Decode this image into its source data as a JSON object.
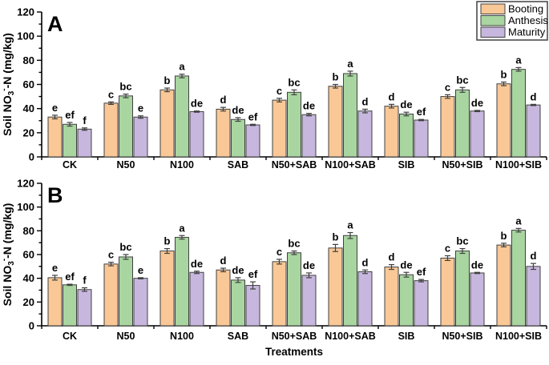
{
  "figure": {
    "xlabel": "Treatments",
    "ylabel_parts": {
      "pre": "Soil NO",
      "sub": "3",
      "sup": "-",
      "post": "-N (mg/kg)"
    },
    "colors": {
      "booting": "#F9C896",
      "anthesis": "#A8D5A0",
      "maturity": "#C7B7DE",
      "bar_border": "#404040",
      "axis": "#000000",
      "legend_border": "#404040"
    }
  },
  "legend": {
    "position": "top-right",
    "items": [
      {
        "label": "Booting",
        "color": "#F9C896"
      },
      {
        "label": "Anthesis",
        "color": "#A8D5A0"
      },
      {
        "label": "Maturity",
        "color": "#C7B7DE"
      }
    ]
  },
  "chart_data": [
    {
      "type": "bar",
      "panel_label": "A",
      "title": "",
      "xlabel": "",
      "ylabel": "Soil NO3--N (mg/kg)",
      "ylim": [
        0,
        120
      ],
      "ytick_major": 20,
      "ytick_minor": 10,
      "grid": false,
      "categories": [
        "CK",
        "N50",
        "N100",
        "SAB",
        "N50+SAB",
        "N100+SAB",
        "SIB",
        "N50+SIB",
        "N100+SIB"
      ],
      "series": [
        {
          "name": "Booting",
          "color": "#F9C896",
          "values": [
            33,
            44.5,
            55.5,
            39.5,
            47,
            58.5,
            42,
            50,
            60.5
          ],
          "errors": [
            1.5,
            1,
            1.5,
            1.5,
            1.5,
            1.5,
            1.5,
            1.5,
            1.5
          ],
          "letters": [
            "e",
            "c",
            "b",
            "d",
            "c",
            "b",
            "d",
            "c",
            "b"
          ]
        },
        {
          "name": "Anthesis",
          "color": "#A8D5A0",
          "values": [
            27,
            50.5,
            67,
            31,
            53.5,
            69,
            35.5,
            55.5,
            72.5
          ],
          "errors": [
            1.5,
            1.5,
            1.5,
            1.5,
            2,
            2,
            1.5,
            2,
            1.5
          ],
          "letters": [
            "ef",
            "bc",
            "a",
            "de",
            "bc",
            "a",
            "de",
            "bc",
            "a"
          ]
        },
        {
          "name": "Maturity",
          "color": "#C7B7DE",
          "values": [
            23,
            33,
            37.5,
            26.5,
            35,
            38,
            30.5,
            38,
            43
          ],
          "errors": [
            1,
            1,
            0.5,
            0.5,
            1,
            1.5,
            0.5,
            0.5,
            0.5
          ],
          "letters": [
            "f",
            "e",
            "de",
            "ef",
            "de",
            "d",
            "ef",
            "de",
            "d"
          ]
        }
      ]
    },
    {
      "type": "bar",
      "panel_label": "B",
      "title": "",
      "xlabel": "Treatments",
      "ylabel": "Soil NO3--N (mg/kg)",
      "ylim": [
        0,
        120
      ],
      "ytick_major": 20,
      "ytick_minor": 10,
      "grid": false,
      "categories": [
        "CK",
        "N50",
        "N100",
        "SAB",
        "N50+SAB",
        "N100+SAB",
        "SIB",
        "N50+SIB",
        "N100+SIB"
      ],
      "series": [
        {
          "name": "Booting",
          "color": "#F9C896",
          "values": [
            40.5,
            52,
            63,
            47,
            54,
            65.5,
            49.5,
            57,
            68
          ],
          "errors": [
            2,
            1.5,
            2,
            1.5,
            2,
            3,
            2,
            2,
            1.5
          ],
          "letters": [
            "e",
            "c",
            "b",
            "d",
            "c",
            "b",
            "d",
            "c",
            "b"
          ]
        },
        {
          "name": "Anthesis",
          "color": "#A8D5A0",
          "values": [
            34.5,
            58,
            74.5,
            38.5,
            61.5,
            76,
            43,
            63,
            80.5
          ],
          "errors": [
            0.5,
            2,
            1.5,
            2,
            1.5,
            2.5,
            2,
            2,
            1.5
          ],
          "letters": [
            "ef",
            "bc",
            "a",
            "de",
            "bc",
            "a",
            "de",
            "bc",
            "a"
          ]
        },
        {
          "name": "Maturity",
          "color": "#C7B7DE",
          "values": [
            30.5,
            40,
            45,
            34,
            42.5,
            45.5,
            38,
            44.5,
            50
          ],
          "errors": [
            1.5,
            0.5,
            1,
            3,
            2,
            1.5,
            1,
            0.5,
            2.5
          ],
          "letters": [
            "f",
            "e",
            "de",
            "ef",
            "de",
            "d",
            "ef",
            "de",
            "d"
          ]
        }
      ]
    }
  ]
}
